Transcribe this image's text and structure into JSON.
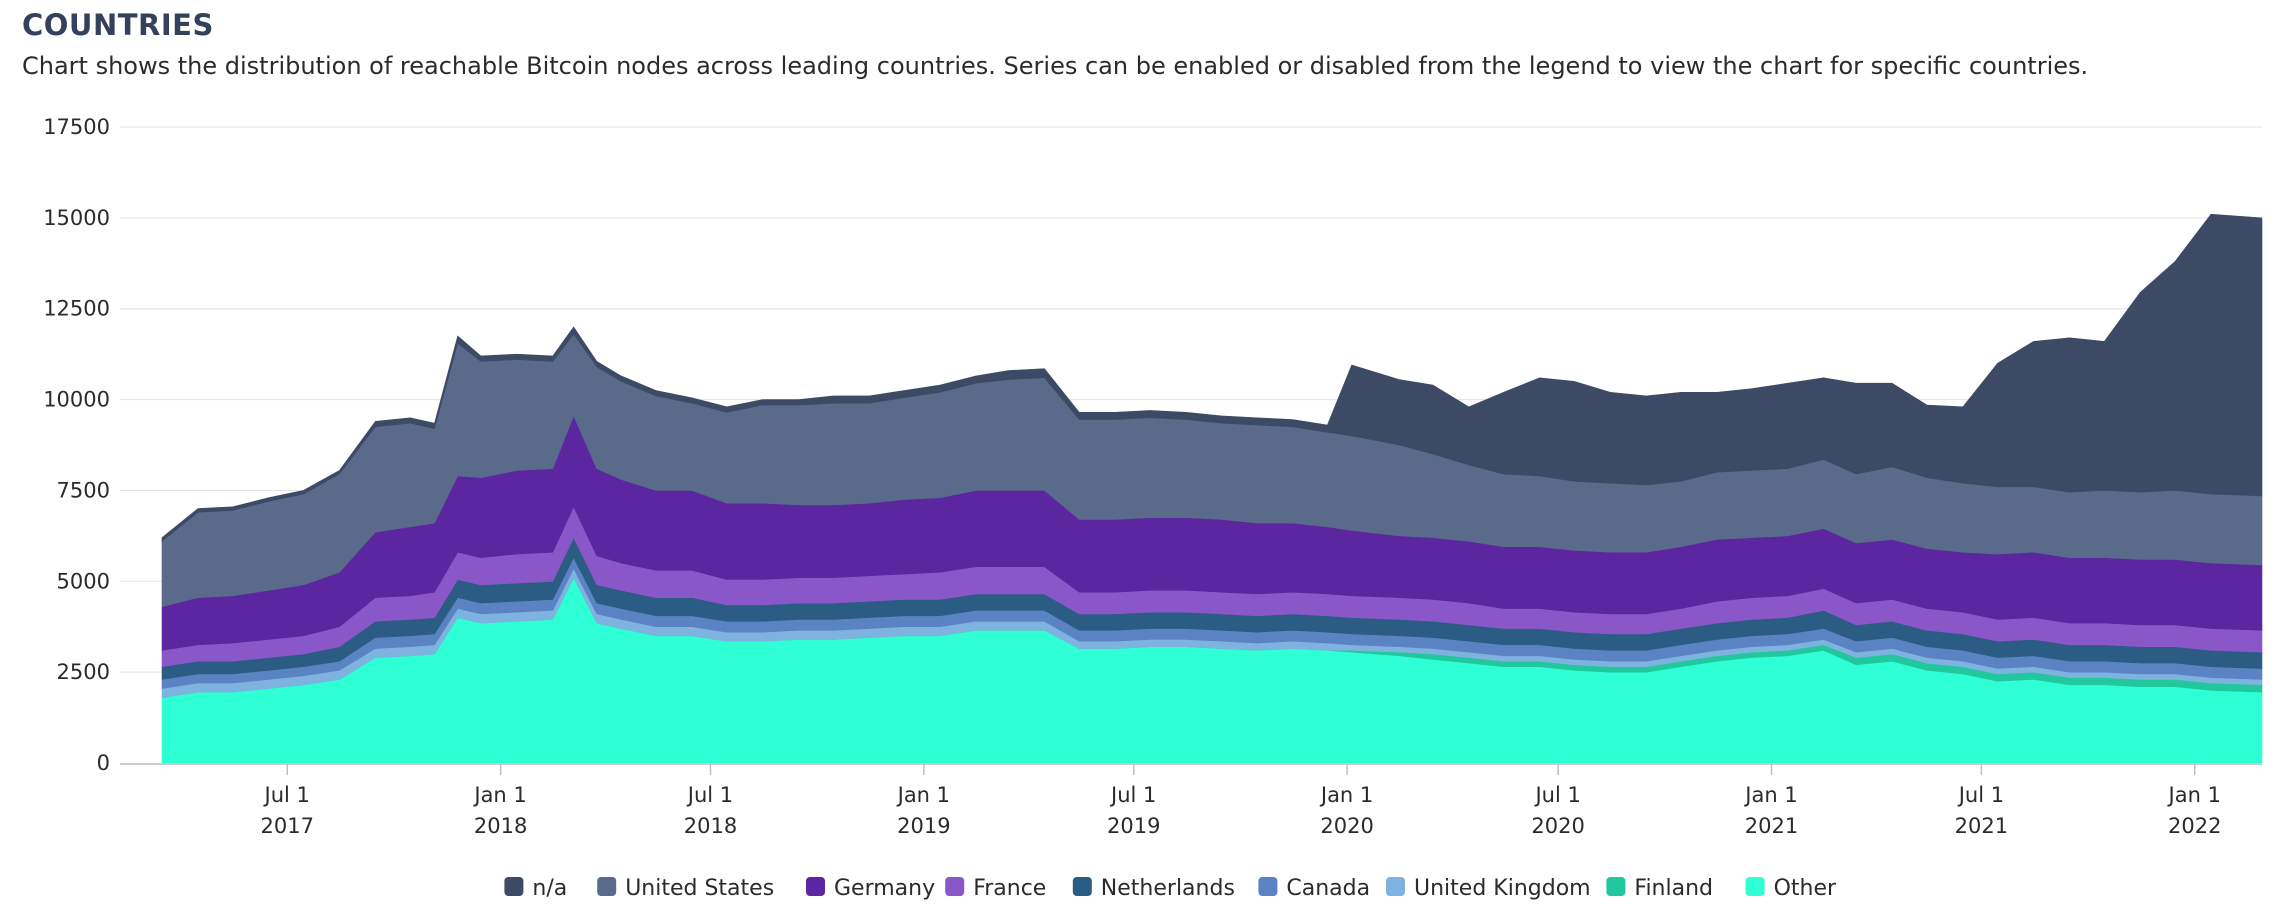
{
  "page": {
    "title": "COUNTRIES",
    "subtitle": "Chart shows the distribution of reachable Bitcoin nodes across leading countries. Series can be enabled or disabled from the legend to view the chart for specific countries."
  },
  "chart_data": {
    "type": "area",
    "stacked": true,
    "x_start": "2017-03-15",
    "x_end": "2022-02-28",
    "ylim": [
      0,
      17500
    ],
    "y_ticks": [
      0,
      2500,
      5000,
      7500,
      10000,
      12500,
      15000,
      17500
    ],
    "x_ticks": [
      {
        "date": "2017-07-01",
        "line1": "Jul 1",
        "line2": "2017"
      },
      {
        "date": "2018-01-01",
        "line1": "Jan 1",
        "line2": "2018"
      },
      {
        "date": "2018-07-01",
        "line1": "Jul 1",
        "line2": "2018"
      },
      {
        "date": "2019-01-01",
        "line1": "Jan 1",
        "line2": "2019"
      },
      {
        "date": "2019-07-01",
        "line1": "Jul 1",
        "line2": "2019"
      },
      {
        "date": "2020-01-01",
        "line1": "Jan 1",
        "line2": "2020"
      },
      {
        "date": "2020-07-01",
        "line1": "Jul 1",
        "line2": "2020"
      },
      {
        "date": "2021-01-01",
        "line1": "Jan 1",
        "line2": "2021"
      },
      {
        "date": "2021-07-01",
        "line1": "Jul 1",
        "line2": "2021"
      },
      {
        "date": "2022-01-01",
        "line1": "Jan 1",
        "line2": "2022"
      }
    ],
    "dates": [
      "2017-03-15",
      "2017-04-15",
      "2017-05-15",
      "2017-06-15",
      "2017-07-15",
      "2017-08-15",
      "2017-09-15",
      "2017-10-15",
      "2017-11-05",
      "2017-11-25",
      "2017-12-15",
      "2018-01-15",
      "2018-02-15",
      "2018-03-05",
      "2018-03-25",
      "2018-04-15",
      "2018-05-15",
      "2018-06-15",
      "2018-07-15",
      "2018-08-15",
      "2018-09-15",
      "2018-10-15",
      "2018-11-15",
      "2018-12-15",
      "2019-01-15",
      "2019-02-15",
      "2019-03-15",
      "2019-04-15",
      "2019-05-15",
      "2019-06-15",
      "2019-07-15",
      "2019-08-15",
      "2019-09-15",
      "2019-10-15",
      "2019-11-15",
      "2019-12-15",
      "2020-01-05",
      "2020-02-15",
      "2020-03-15",
      "2020-04-15",
      "2020-05-15",
      "2020-06-15",
      "2020-07-15",
      "2020-08-15",
      "2020-09-15",
      "2020-10-15",
      "2020-11-15",
      "2020-12-15",
      "2021-01-15",
      "2021-02-15",
      "2021-03-15",
      "2021-04-15",
      "2021-05-15",
      "2021-06-15",
      "2021-07-15",
      "2021-08-15",
      "2021-09-15",
      "2021-10-15",
      "2021-11-15",
      "2021-12-15",
      "2022-01-15",
      "2022-02-28"
    ],
    "series": [
      {
        "name": "Other",
        "color": "#2effd5",
        "values": [
          1800,
          1950,
          1950,
          2050,
          2150,
          2300,
          2900,
          2950,
          3000,
          4000,
          3850,
          3900,
          3950,
          5100,
          3850,
          3700,
          3500,
          3500,
          3350,
          3350,
          3400,
          3400,
          3450,
          3500,
          3500,
          3650,
          3650,
          3650,
          3150,
          3150,
          3200,
          3200,
          3150,
          3100,
          3150,
          3100,
          3050,
          2950,
          2850,
          2750,
          2650,
          2650,
          2550,
          2500,
          2500,
          2650,
          2800,
          2900,
          2950,
          3100,
          2700,
          2800,
          2550,
          2450,
          2250,
          2300,
          2150,
          2150,
          2100,
          2100,
          2000,
          1950
        ]
      },
      {
        "name": "Finland",
        "color": "#21c79d",
        "values": [
          0,
          0,
          0,
          0,
          0,
          0,
          0,
          0,
          0,
          0,
          0,
          0,
          0,
          0,
          0,
          0,
          0,
          0,
          0,
          0,
          0,
          0,
          0,
          0,
          0,
          0,
          0,
          0,
          0,
          0,
          0,
          0,
          0,
          0,
          0,
          0,
          50,
          100,
          150,
          150,
          150,
          150,
          150,
          150,
          150,
          150,
          150,
          150,
          150,
          150,
          200,
          200,
          200,
          200,
          200,
          200,
          200,
          200,
          200,
          200,
          200,
          200
        ]
      },
      {
        "name": "United Kingdom",
        "color": "#7eb3e0",
        "values": [
          250,
          250,
          250,
          250,
          250,
          250,
          250,
          250,
          250,
          250,
          250,
          250,
          250,
          250,
          250,
          250,
          250,
          250,
          250,
          250,
          250,
          250,
          250,
          250,
          250,
          250,
          250,
          250,
          200,
          200,
          200,
          200,
          200,
          200,
          200,
          200,
          150,
          150,
          150,
          150,
          150,
          150,
          150,
          150,
          150,
          150,
          150,
          150,
          150,
          150,
          150,
          150,
          150,
          150,
          150,
          150,
          150,
          150,
          150,
          150,
          150,
          150
        ]
      },
      {
        "name": "Canada",
        "color": "#5b83c4",
        "values": [
          250,
          250,
          250,
          250,
          250,
          250,
          300,
          300,
          300,
          300,
          300,
          300,
          300,
          300,
          300,
          300,
          300,
          300,
          300,
          300,
          300,
          300,
          300,
          300,
          300,
          300,
          300,
          300,
          300,
          300,
          300,
          300,
          300,
          300,
          300,
          300,
          300,
          300,
          300,
          300,
          300,
          300,
          300,
          300,
          300,
          300,
          300,
          300,
          300,
          300,
          300,
          300,
          300,
          300,
          300,
          300,
          300,
          300,
          300,
          300,
          300,
          300
        ]
      },
      {
        "name": "Netherlands",
        "color": "#2b5d84",
        "values": [
          350,
          350,
          350,
          350,
          350,
          400,
          450,
          450,
          450,
          500,
          500,
          500,
          500,
          550,
          500,
          500,
          500,
          500,
          450,
          450,
          450,
          450,
          450,
          450,
          450,
          450,
          450,
          450,
          450,
          450,
          450,
          450,
          450,
          450,
          450,
          450,
          450,
          450,
          450,
          450,
          450,
          450,
          450,
          450,
          450,
          450,
          450,
          450,
          450,
          500,
          450,
          450,
          450,
          450,
          450,
          450,
          450,
          450,
          450,
          450,
          450,
          450
        ]
      },
      {
        "name": "France",
        "color": "#8a57c9",
        "values": [
          450,
          450,
          500,
          500,
          500,
          550,
          650,
          650,
          700,
          750,
          750,
          800,
          800,
          850,
          800,
          750,
          750,
          750,
          700,
          700,
          700,
          700,
          700,
          700,
          750,
          750,
          750,
          750,
          600,
          600,
          600,
          600,
          600,
          600,
          600,
          600,
          600,
          600,
          600,
          600,
          550,
          550,
          550,
          550,
          550,
          550,
          600,
          600,
          600,
          600,
          600,
          600,
          600,
          600,
          600,
          600,
          600,
          600,
          600,
          600,
          600,
          600
        ]
      },
      {
        "name": "Germany",
        "color": "#5c26a0",
        "values": [
          1200,
          1300,
          1300,
          1350,
          1400,
          1500,
          1800,
          1900,
          1900,
          2100,
          2200,
          2300,
          2300,
          2500,
          2400,
          2300,
          2200,
          2200,
          2100,
          2100,
          2000,
          2000,
          2000,
          2050,
          2050,
          2100,
          2100,
          2100,
          2000,
          2000,
          2000,
          2000,
          2000,
          1950,
          1900,
          1850,
          1800,
          1700,
          1700,
          1700,
          1700,
          1700,
          1700,
          1700,
          1700,
          1700,
          1700,
          1650,
          1650,
          1650,
          1650,
          1650,
          1650,
          1650,
          1800,
          1800,
          1800,
          1800,
          1800,
          1800,
          1800,
          1800
        ]
      },
      {
        "name": "United States",
        "color": "#5a6a8a",
        "values": [
          1800,
          2350,
          2350,
          2450,
          2500,
          2700,
          2900,
          2850,
          2600,
          3650,
          3200,
          3050,
          2950,
          2250,
          2800,
          2700,
          2600,
          2400,
          2500,
          2700,
          2750,
          2800,
          2750,
          2800,
          2900,
          2950,
          3050,
          3100,
          2750,
          2750,
          2750,
          2700,
          2650,
          2700,
          2650,
          2600,
          2600,
          2500,
          2300,
          2100,
          2000,
          1950,
          1900,
          1900,
          1850,
          1800,
          1850,
          1850,
          1850,
          1900,
          1900,
          2000,
          1950,
          1900,
          1850,
          1800,
          1800,
          1850,
          1850,
          1900,
          1900,
          1900
        ]
      },
      {
        "name": "n/a",
        "color": "#3c4a66",
        "values": [
          100,
          100,
          100,
          100,
          100,
          100,
          150,
          150,
          150,
          200,
          150,
          150,
          150,
          200,
          150,
          150,
          150,
          150,
          150,
          150,
          150,
          200,
          200,
          200,
          200,
          200,
          250,
          250,
          200,
          200,
          200,
          200,
          200,
          200,
          200,
          200,
          1950,
          1800,
          1900,
          1600,
          2250,
          2700,
          2750,
          2500,
          2450,
          2450,
          2200,
          2250,
          2350,
          2250,
          2500,
          2300,
          2000,
          2100,
          3400,
          4000,
          4250,
          4100,
          5500,
          6300,
          7700,
          7650
        ]
      }
    ]
  },
  "legend": [
    {
      "label": "n/a",
      "color": "#3c4a66"
    },
    {
      "label": "United States",
      "color": "#5a6a8a"
    },
    {
      "label": "Germany",
      "color": "#5c26a0"
    },
    {
      "label": "France",
      "color": "#8a57c9"
    },
    {
      "label": "Netherlands",
      "color": "#2b5d84"
    },
    {
      "label": "Canada",
      "color": "#5b83c4"
    },
    {
      "label": "United Kingdom",
      "color": "#7eb3e0"
    },
    {
      "label": "Finland",
      "color": "#21c79d"
    },
    {
      "label": "Other",
      "color": "#2effd5"
    }
  ]
}
